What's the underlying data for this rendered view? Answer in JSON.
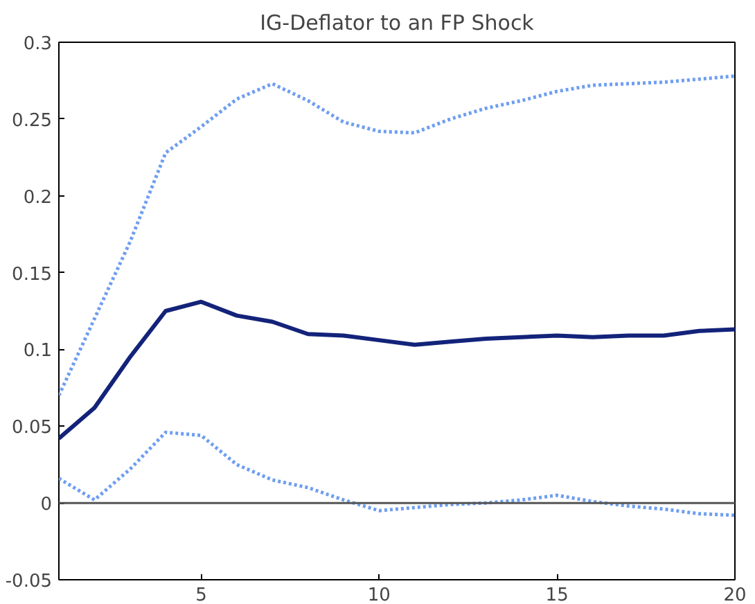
{
  "chart_data": {
    "type": "line",
    "title": "IG-Deflator to an FP Shock",
    "x": [
      1,
      2,
      3,
      4,
      5,
      6,
      7,
      8,
      9,
      10,
      11,
      12,
      13,
      14,
      15,
      16,
      17,
      18,
      19,
      20
    ],
    "series": [
      {
        "color": "#6f9ef0",
        "line_style": "dotted",
        "values": [
          0.07,
          0.12,
          0.17,
          0.228,
          0.245,
          0.263,
          0.273,
          0.262,
          0.248,
          0.242,
          0.241,
          0.25,
          0.257,
          0.262,
          0.268,
          0.272,
          0.273,
          0.274,
          0.276,
          0.278
        ]
      },
      {
        "color": "#6f9ef0",
        "line_style": "dotted",
        "values": [
          0.016,
          0.002,
          0.022,
          0.046,
          0.044,
          0.025,
          0.015,
          0.01,
          0.002,
          -0.005,
          -0.003,
          -0.001,
          0.0,
          0.002,
          0.005,
          0.001,
          -0.002,
          -0.004,
          -0.007,
          -0.008
        ]
      },
      {
        "color": "#13237a",
        "line_style": "solid",
        "values": [
          0.042,
          0.062,
          0.095,
          0.125,
          0.131,
          0.122,
          0.118,
          0.11,
          0.109,
          0.106,
          0.103,
          0.105,
          0.107,
          0.108,
          0.109,
          0.108,
          0.109,
          0.109,
          0.112,
          0.113
        ]
      }
    ],
    "xlim": [
      1,
      20
    ],
    "xticks": [
      5,
      10,
      15,
      20
    ],
    "ylim": [
      -0.05,
      0.3
    ],
    "yticks": [
      -0.05,
      0,
      0.05,
      0.1,
      0.15,
      0.2,
      0.25,
      0.3
    ],
    "ref_lines": [
      {
        "axis": "y",
        "value": 0,
        "color": "#555555"
      }
    ],
    "grid": false,
    "marker": "none"
  }
}
